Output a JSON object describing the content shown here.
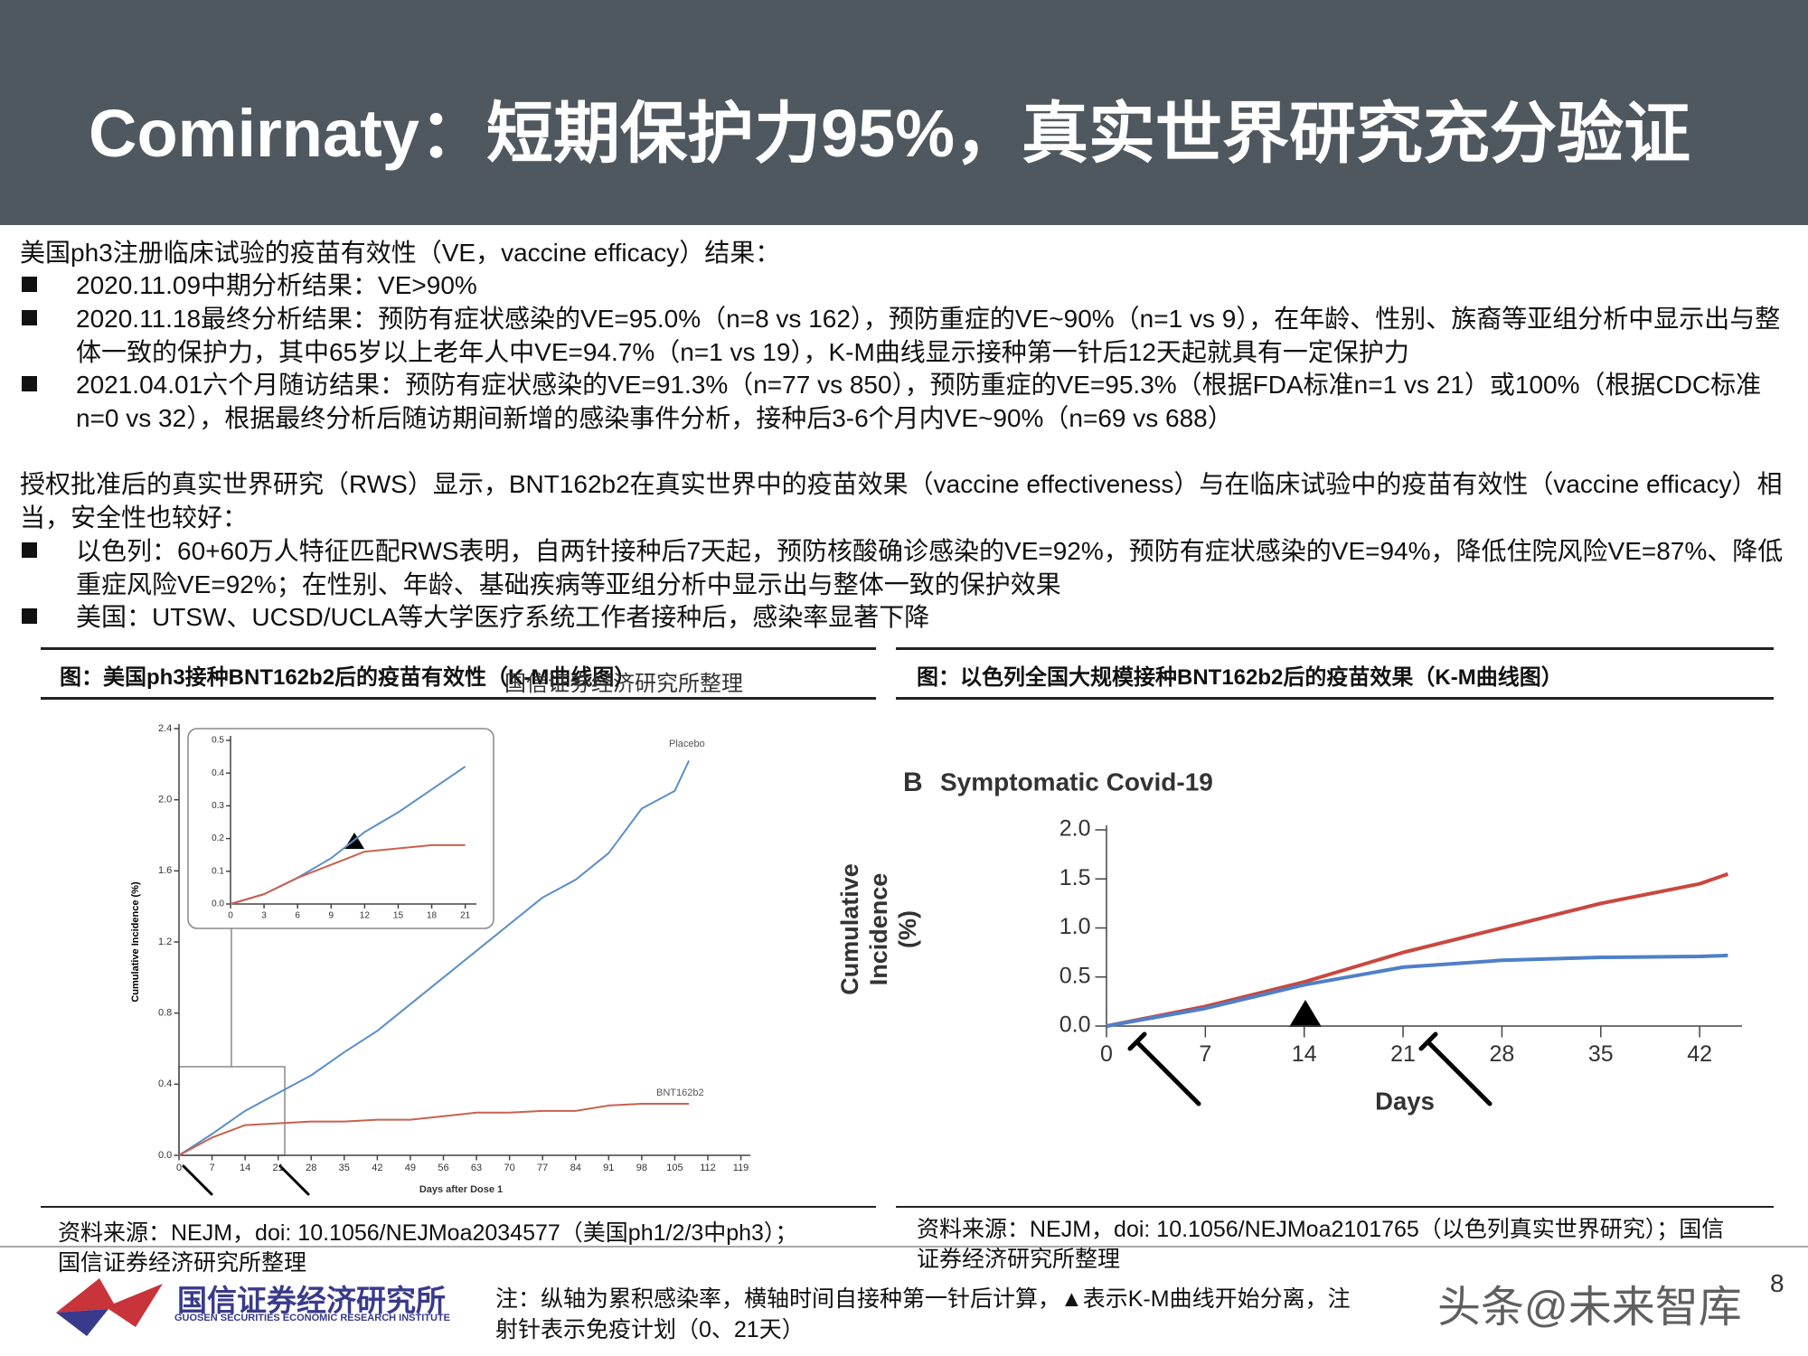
{
  "header": {
    "title": "Comirnaty：短期保护力95%，真实世界研究充分验证"
  },
  "trial": {
    "intro": "美国ph3注册临床试验的疫苗有效性（VE，vaccine efficacy）结果：",
    "bullets": [
      "2020.11.09中期分析结果：VE>90%",
      "2020.11.18最终分析结果：预防有症状感染的VE=95.0%（n=8 vs 162），预防重症的VE~90%（n=1 vs 9），在年龄、性别、族裔等亚组分析中显示出与整体一致的保护力，其中65岁以上老年人中VE=94.7%（n=1 vs 19），K-M曲线显示接种第一针后12天起就具有一定保护力",
      "2021.04.01六个月随访结果：预防有症状感染的VE=91.3%（n=77 vs 850），预防重症的VE=95.3%（根据FDA标准n=1 vs 21）或100%（根据CDC标准n=0 vs 32），根据最终分析后随访期间新增的感染事件分析，接种后3-6个月内VE~90%（n=69 vs 688）"
    ]
  },
  "rws": {
    "intro": "授权批准后的真实世界研究（RWS）显示，BNT162b2在真实世界中的疫苗效果（vaccine effectiveness）与在临床试验中的疫苗有效性（vaccine efficacy）相当，安全性也较好：",
    "bullets": [
      "以色列：60+60万人特征匹配RWS表明，自两针接种后7天起，预防核酸确诊感染的VE=92%，预防有症状感染的VE=94%，降低住院风险VE=87%、降低重症风险VE=92%；在性别、年龄、基础疾病等亚组分析中显示出与整体一致的保护效果",
      "美国：UTSW、UCSD/UCLA等大学医疗系统工作者接种后，感染率显著下降"
    ]
  },
  "figures": [
    {
      "caption": "图：美国ph3接种BNT162b2后的疫苗有效性（K-M曲线图）",
      "overlay": "国信证券经济研究所整理",
      "source": "资料来源：NEJM，doi: 10.1056/NEJMoa2034577（美国ph1/2/3中ph3）；国信证券经济研究所整理"
    },
    {
      "caption": "图：以色列全国大规模接种BNT162b2后的疫苗效果（K-M曲线图）",
      "source": "资料来源：NEJM，doi: 10.1056/NEJMoa2101765（以色列真实世界研究）；国信证券经济研究所整理"
    }
  ],
  "note": "注：纵轴为累积感染率，横轴时间自接种第一针后计算，▲表示K-M曲线开始分离，注射针表示免疫计划（0、21天）",
  "footer": {
    "logo_cn": "国信证券经济研究所",
    "logo_en": "GUOSEN SECURITIES ECONOMIC RESEARCH INSTITUTE",
    "page": "8",
    "watermark": "头条@未来智库"
  },
  "chart_data": [
    {
      "type": "line",
      "ylabel": "Cumulative Incidence (%)",
      "xlabel": "Days after Dose 1",
      "x": [
        0,
        7,
        14,
        21,
        28,
        35,
        42,
        49,
        56,
        63,
        70,
        77,
        84,
        91,
        98,
        105,
        108
      ],
      "series": [
        {
          "name": "Placebo",
          "color": "#5b8fc9",
          "values": [
            0,
            0.12,
            0.25,
            0.35,
            0.45,
            0.58,
            0.7,
            0.85,
            1.0,
            1.15,
            1.3,
            1.45,
            1.55,
            1.7,
            1.95,
            2.05,
            2.22
          ]
        },
        {
          "name": "BNT162b2",
          "color": "#c8614e",
          "values": [
            0,
            0.1,
            0.17,
            0.18,
            0.19,
            0.19,
            0.2,
            0.2,
            0.22,
            0.24,
            0.24,
            0.25,
            0.25,
            0.28,
            0.29,
            0.29,
            0.29
          ]
        }
      ],
      "xlim": [
        0,
        121
      ],
      "ylim": [
        0,
        2.4
      ],
      "xticks": [
        0,
        7,
        14,
        21,
        28,
        35,
        42,
        49,
        56,
        63,
        70,
        77,
        84,
        91,
        98,
        105,
        112,
        119
      ],
      "yticks": [
        {
          "value": 0,
          "label": "0.0"
        },
        0.4,
        0.8,
        1.2,
        1.6,
        {
          "value": 2,
          "label": "2.0"
        },
        2.4
      ]
    },
    {
      "type": "line",
      "x": [
        0,
        3,
        6,
        9,
        12,
        15,
        18,
        21
      ],
      "series": [
        {
          "color": "#5b8fc9",
          "values": [
            0,
            0.03,
            0.08,
            0.14,
            0.22,
            0.28,
            0.35,
            0.42
          ]
        },
        {
          "color": "#c8614e",
          "values": [
            0,
            0.03,
            0.08,
            0.12,
            0.16,
            0.17,
            0.18,
            0.18
          ]
        }
      ],
      "xlim": [
        0,
        22
      ],
      "ylim": [
        0,
        0.5
      ],
      "xticks": [
        0,
        3,
        6,
        9,
        12,
        15,
        18,
        21
      ],
      "yticks": [
        {
          "value": 0,
          "label": "0.0"
        },
        0.1,
        0.2,
        0.3,
        0.4,
        0.5
      ]
    },
    {
      "type": "line",
      "panel": "B",
      "title": "Symptomatic Covid-19",
      "ylabel": "Cumulative Incidence (%)",
      "xlabel": "Days",
      "x": [
        0,
        7,
        14,
        21,
        28,
        35,
        42,
        44
      ],
      "series": [
        {
          "color": "#c9483f",
          "values": [
            0,
            0.2,
            0.45,
            0.75,
            1.0,
            1.25,
            1.45,
            1.55
          ]
        },
        {
          "color": "#4f7fc8",
          "values": [
            0,
            0.18,
            0.42,
            0.6,
            0.67,
            0.7,
            0.71,
            0.72
          ]
        }
      ],
      "xlim": [
        0,
        45
      ],
      "ylim": [
        0,
        2
      ],
      "xticks": [
        0,
        7,
        14,
        21,
        28,
        35,
        42
      ],
      "yticks": [
        {
          "value": 0,
          "label": "0.0"
        },
        0.5,
        {
          "value": 1,
          "label": "1.0"
        },
        1.5,
        {
          "value": 2,
          "label": "2.0"
        }
      ]
    }
  ]
}
